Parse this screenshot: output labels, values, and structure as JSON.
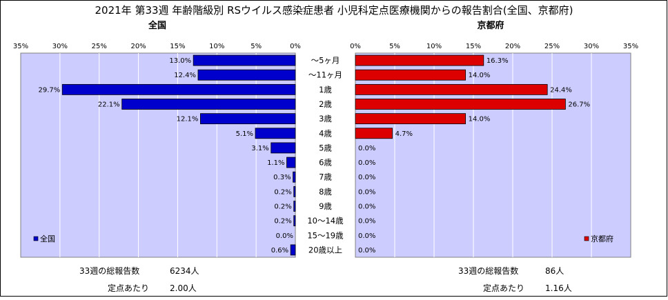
{
  "title": "2021年 第33週 年齢階級別 RSウイルス感染症患者 小児科定点医療機関からの報告割合(全国、京都府)",
  "chart_data": {
    "type": "bar",
    "orientation": "horizontal",
    "layout": "back-to-back",
    "categories": [
      "～5ヶ月",
      "～11ヶ月",
      "1歳",
      "2歳",
      "3歳",
      "4歳",
      "5歳",
      "6歳",
      "7歳",
      "8歳",
      "9歳",
      "10～14歳",
      "15～19歳",
      "20歳以上"
    ],
    "xlim": [
      0,
      35
    ],
    "xticks": [
      0,
      5,
      10,
      15,
      20,
      25,
      30,
      35
    ],
    "tick_suffix": "%",
    "grid": true,
    "series": [
      {
        "name": "全国",
        "panel_title": "全国",
        "side": "left",
        "color": "#0000cc",
        "values": [
          13.0,
          12.4,
          29.7,
          22.1,
          12.1,
          5.1,
          3.1,
          1.1,
          0.3,
          0.2,
          0.2,
          0.2,
          0.0,
          0.6
        ],
        "labels": [
          "13.0%",
          "12.4%",
          "29.7%",
          "22.1%",
          "12.1%",
          "5.1%",
          "3.1%",
          "1.1%",
          "0.3%",
          "0.2%",
          "0.2%",
          "0.2%",
          "0.0%",
          "0.6%"
        ],
        "legend_position": "bottom-left"
      },
      {
        "name": "京都府",
        "panel_title": "京都府",
        "side": "right",
        "color": "#dd0000",
        "values": [
          16.3,
          14.0,
          24.4,
          26.7,
          14.0,
          4.7,
          0.0,
          0.0,
          0.0,
          0.0,
          0.0,
          0.0,
          0.0,
          0.0
        ],
        "labels": [
          "16.3%",
          "14.0%",
          "24.4%",
          "26.7%",
          "14.0%",
          "4.7%",
          "0.0%",
          "0.0%",
          "0.0%",
          "0.0%",
          "0.0%",
          "0.0%",
          "0.0%",
          "0.0%"
        ],
        "legend_position": "bottom-right"
      }
    ],
    "plot_background": "#ccccff"
  },
  "footer": {
    "national": {
      "total_label": "33週の総報告数",
      "total_value": "6234人",
      "per_label": "定点あたり",
      "per_value": "2.00人"
    },
    "kyoto": {
      "total_label": "33週の総報告数",
      "total_value": "86人",
      "per_label": "定点あたり",
      "per_value": "1.16人"
    }
  }
}
